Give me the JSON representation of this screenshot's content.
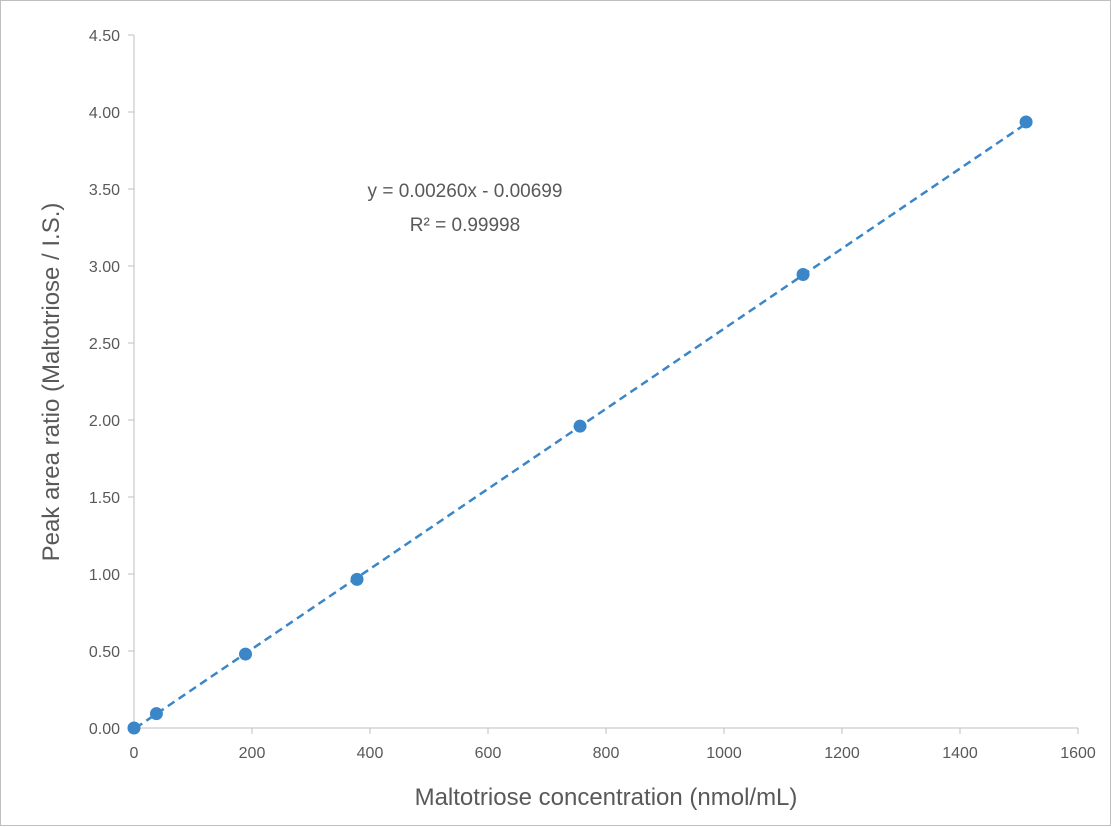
{
  "chart_data": {
    "type": "scatter",
    "title": "",
    "xlabel": "Maltotriose concentration (nmol/mL)",
    "ylabel": "Peak area ratio (Maltotriose / I.S.)",
    "xlim": [
      0,
      1600
    ],
    "ylim": [
      0,
      4.5
    ],
    "xticks": [
      0,
      200,
      400,
      600,
      800,
      1000,
      1200,
      1400,
      1600
    ],
    "yticks": [
      "0.00",
      "0.50",
      "1.00",
      "1.50",
      "2.00",
      "2.50",
      "3.00",
      "3.50",
      "4.00",
      "4.50"
    ],
    "grid": false,
    "legend": "none",
    "series": [
      {
        "x": [
          0,
          38,
          189,
          378,
          756,
          1134,
          1512
        ],
        "y": [
          0.0,
          0.093,
          0.48,
          0.965,
          1.96,
          2.945,
          3.935
        ],
        "color": "#3a86c8"
      }
    ],
    "trendline": {
      "type": "linear",
      "slope": 0.0026,
      "intercept": -0.00699,
      "style": "dashed",
      "color": "#3a86c8",
      "equation_label": "y = 0.00260x - 0.00699",
      "r2_label": "R² = 0.99998"
    }
  }
}
